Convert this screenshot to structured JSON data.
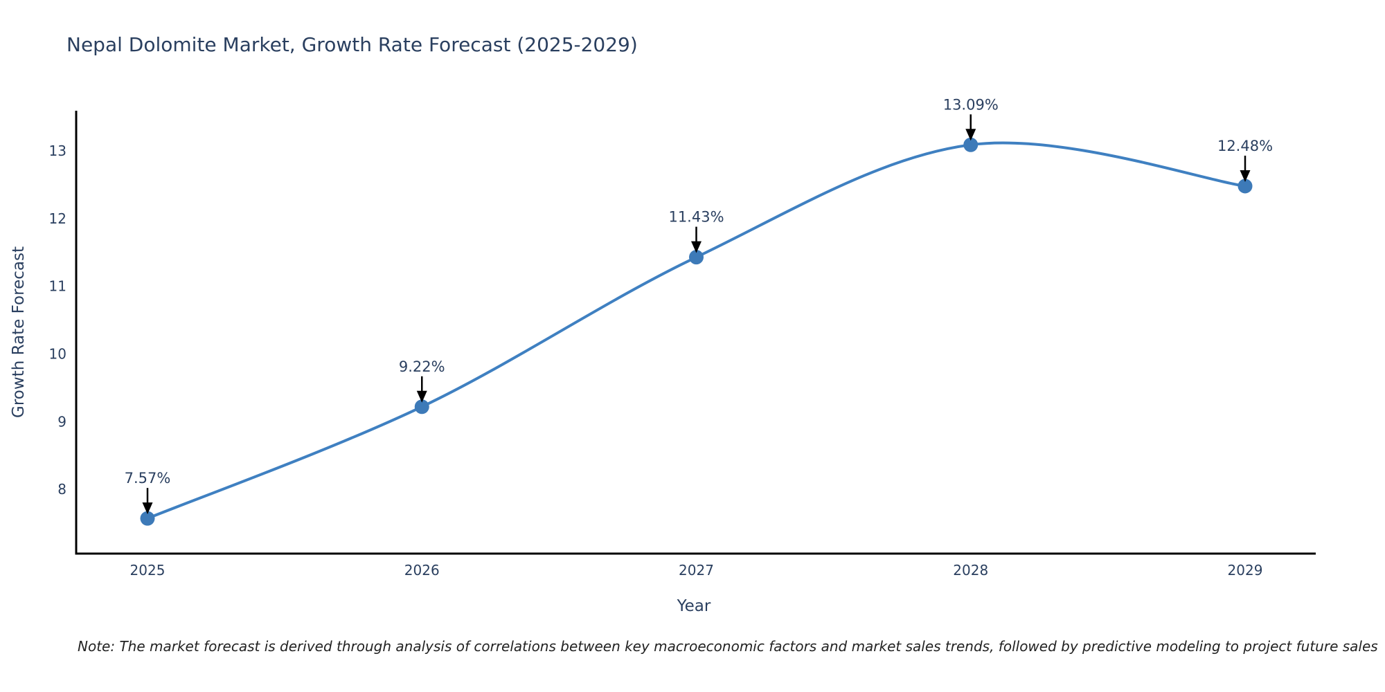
{
  "chart_data": {
    "type": "line",
    "line_shape": "spline",
    "title": "Nepal Dolomite Market, Growth Rate Forecast (2025-2029)",
    "xlabel": "Year",
    "ylabel": "Growth Rate Forecast",
    "categories": [
      "2025",
      "2026",
      "2027",
      "2028",
      "2029"
    ],
    "series": [
      {
        "name": "Growth Rate Forecast",
        "values": [
          7.57,
          9.22,
          11.43,
          13.09,
          12.48
        ]
      }
    ],
    "point_labels": [
      "7.57%",
      "9.22%",
      "11.43%",
      "13.09%",
      "12.48%"
    ],
    "yticks": [
      8,
      9,
      10,
      11,
      12,
      13
    ],
    "ylim": [
      7.05,
      13.55
    ],
    "grid": false,
    "legend_position": "none",
    "note": "Note: The market forecast is derived through analysis of correlations between key macroeconomic factors and market sales trends, followed by predictive modeling to project future sales",
    "colors": {
      "line": "#3f80c1",
      "marker": "#3d7ab8",
      "axis": "#000000",
      "tick_text": "#2a3f5f",
      "annotation_text": "#2a3f5f",
      "annotation_arrow": "#000000",
      "note_text": "#222222",
      "background": "#ffffff"
    }
  }
}
